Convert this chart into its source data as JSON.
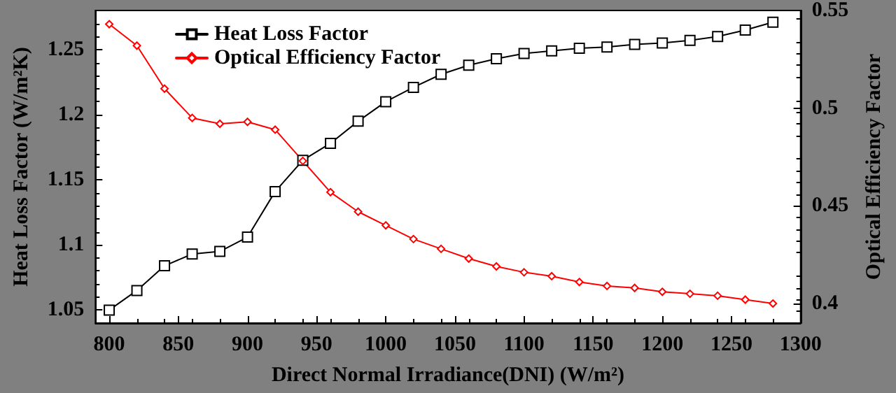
{
  "chart_data": {
    "type": "line",
    "xlabel": "Direct Normal Irradiance(DNI) (W/m²)",
    "ylabel": "Heat Loss Factor (W/m²K)",
    "y2label": "Optical Efficiency Factor",
    "x": [
      800,
      820,
      840,
      860,
      880,
      900,
      920,
      940,
      960,
      980,
      1000,
      1020,
      1040,
      1060,
      1080,
      1100,
      1120,
      1140,
      1160,
      1180,
      1200,
      1220,
      1240,
      1260,
      1280
    ],
    "series": [
      {
        "name": "Heat Loss Factor",
        "color": "#000000",
        "marker": "square",
        "values": [
          1.05,
          1.065,
          1.084,
          1.093,
          1.095,
          1.106,
          1.141,
          1.165,
          1.178,
          1.195,
          1.21,
          1.221,
          1.231,
          1.238,
          1.243,
          1.247,
          1.249,
          1.251,
          1.252,
          1.254,
          1.255,
          1.257,
          1.26,
          1.265,
          1.271
        ]
      },
      {
        "name": "Optical Efficiency Factor",
        "color": "#ff0000",
        "marker": "diamond",
        "axis": "y2",
        "values": [
          0.543,
          0.532,
          0.51,
          0.495,
          0.492,
          0.493,
          0.489,
          0.473,
          0.457,
          0.447,
          0.44,
          0.433,
          0.428,
          0.423,
          0.419,
          0.416,
          0.414,
          0.411,
          0.409,
          0.408,
          0.406,
          0.405,
          0.404,
          0.402,
          0.4
        ]
      }
    ],
    "xlim": [
      790,
      1300
    ],
    "xticks": [
      800,
      850,
      900,
      950,
      1000,
      1050,
      1100,
      1150,
      1200,
      1250,
      1300
    ],
    "ylim": [
      1.04,
      1.28
    ],
    "yticks": [
      1.05,
      1.1,
      1.15,
      1.2,
      1.25
    ],
    "y2lim": [
      0.39,
      0.55
    ],
    "y2ticks": [
      0.4,
      0.45,
      0.5,
      0.55
    ],
    "legend": "top left",
    "grid": false,
    "line_style": "solid"
  }
}
